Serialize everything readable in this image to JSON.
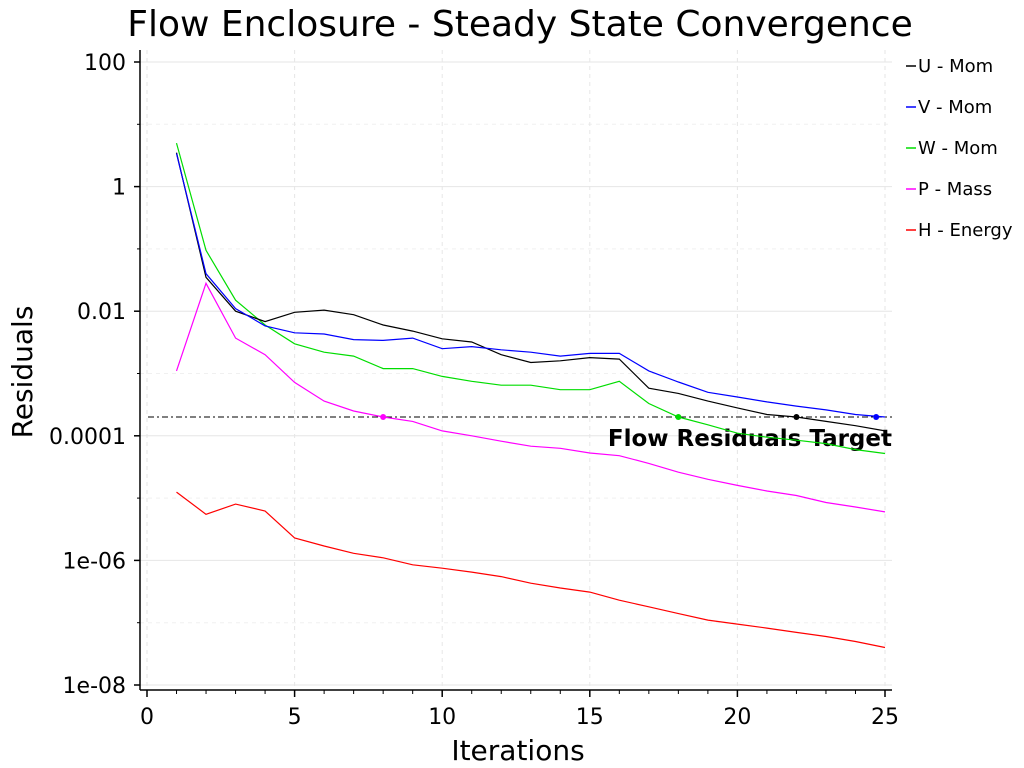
{
  "chart_data": {
    "type": "line",
    "title": "Flow Enclosure - Steady State Convergence",
    "xlabel": "Iterations",
    "ylabel": "Residuals",
    "xlim": [
      0,
      25
    ],
    "ylim": [
      1e-08,
      100
    ],
    "yscale": "log",
    "grid": true,
    "legend_position": "right",
    "x_ticks": [
      0,
      5,
      10,
      15,
      20,
      25
    ],
    "y_ticks": [
      1e-08,
      1e-06,
      0.0001,
      0.01,
      1,
      100
    ],
    "y_tick_labels": [
      "1e-08",
      "1e-06",
      "0.0001",
      "0.01",
      "1",
      "100"
    ],
    "x": [
      1,
      2,
      3,
      4,
      5,
      6,
      7,
      8,
      9,
      10,
      11,
      12,
      13,
      14,
      15,
      16,
      17,
      18,
      19,
      20,
      21,
      22,
      23,
      24,
      25
    ],
    "series": [
      {
        "name": "U - Mom",
        "color": "#000000",
        "values": [
          3.5,
          0.035,
          0.01,
          0.0068,
          0.0096,
          0.0104,
          0.0088,
          0.006,
          0.0048,
          0.0036,
          0.0032,
          0.002,
          0.0015,
          0.0016,
          0.0018,
          0.0017,
          0.00058,
          0.00048,
          0.00036,
          0.00028,
          0.00022,
          0.0002,
          0.00017,
          0.000145,
          0.00012
        ],
        "marker": {
          "x": 22,
          "y": 0.0002
        }
      },
      {
        "name": "V - Mom",
        "color": "#0000ff",
        "values": [
          3.4,
          0.04,
          0.011,
          0.0058,
          0.0045,
          0.0043,
          0.0035,
          0.0034,
          0.0037,
          0.0025,
          0.0027,
          0.0024,
          0.0022,
          0.0019,
          0.0021,
          0.0021,
          0.0011,
          0.00073,
          0.0005,
          0.00042,
          0.00035,
          0.0003,
          0.00026,
          0.00022,
          0.0002
        ],
        "marker": {
          "x": 24.7,
          "y": 0.0002
        }
      },
      {
        "name": "W - Mom",
        "color": "#00dd00",
        "values": [
          5.0,
          0.095,
          0.015,
          0.006,
          0.003,
          0.0022,
          0.0019,
          0.0012,
          0.0012,
          0.0009,
          0.00075,
          0.00065,
          0.00065,
          0.00055,
          0.00055,
          0.00075,
          0.00033,
          0.0002,
          0.00015,
          0.00011,
          9.5e-05,
          8.5e-05,
          7.5e-05,
          6e-05,
          5.2e-05
        ],
        "marker": {
          "x": 18,
          "y": 0.0002
        }
      },
      {
        "name": "P - Mass",
        "color": "#ff00ff",
        "values": [
          0.0011,
          0.028,
          0.0037,
          0.002,
          0.00072,
          0.00036,
          0.00025,
          0.0002,
          0.00017,
          0.00012,
          0.0001,
          8.2e-05,
          6.8e-05,
          6.3e-05,
          5.3e-05,
          4.8e-05,
          3.6e-05,
          2.6e-05,
          2e-05,
          1.6e-05,
          1.3e-05,
          1.1e-05,
          8.5e-06,
          7.2e-06,
          6e-06
        ],
        "marker": {
          "x": 8,
          "y": 0.0002
        }
      },
      {
        "name": "H - Energy",
        "color": "#ff0000",
        "values": [
          1.25e-05,
          5.5e-06,
          8e-06,
          6.2e-06,
          2.3e-06,
          1.7e-06,
          1.3e-06,
          1.1e-06,
          8.5e-07,
          7.5e-07,
          6.5e-07,
          5.5e-07,
          4.3e-07,
          3.6e-07,
          3.1e-07,
          2.3e-07,
          1.8e-07,
          1.4e-07,
          1.1e-07,
          9.5e-08,
          8.2e-08,
          7e-08,
          6e-08,
          5e-08,
          4e-08
        ]
      }
    ],
    "target_line": {
      "value": 0.0002,
      "label": "Flow Residuals Target"
    }
  }
}
